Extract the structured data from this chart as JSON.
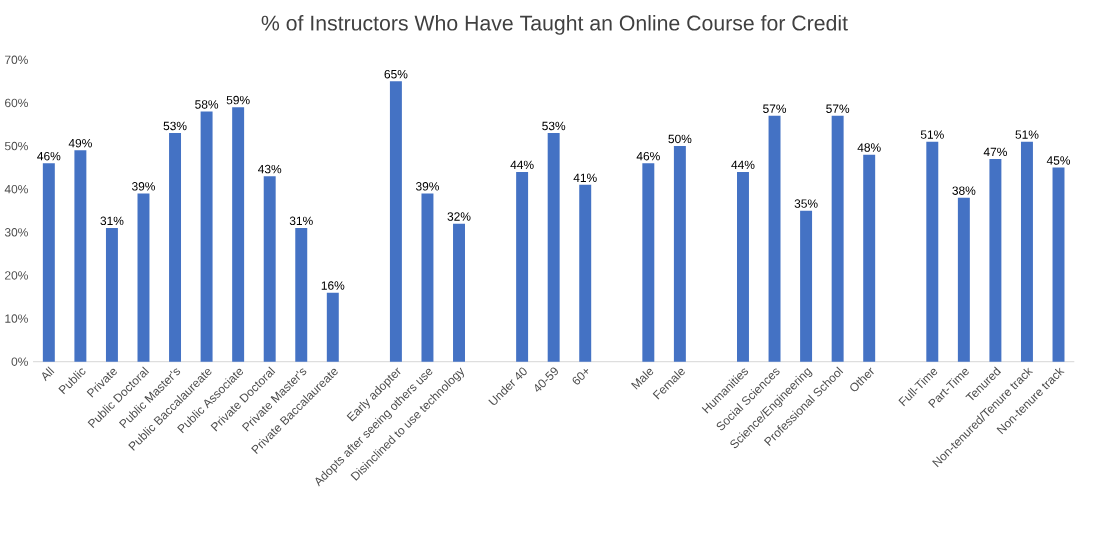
{
  "chart_data": {
    "type": "bar",
    "title": "% of Instructors Who Have Taught an Online Course for Credit",
    "categories": [
      "All",
      "Public",
      "Private",
      "Public Doctoral",
      "Public Master's",
      "Public Baccalaureate",
      "Public Associate",
      "Private Doctoral",
      "Private Master's",
      "Private Baccalaureate",
      null,
      "Early adopter",
      "Adopts after seeing others use",
      "Disinclined to use technology",
      null,
      "Under 40",
      "40-59",
      "60+",
      null,
      "Male",
      "Female",
      null,
      "Humanities",
      "Social Sciences",
      "Science/Engineering",
      "Professional School",
      "Other",
      null,
      "Full-Time",
      "Part-Time",
      "Tenured",
      "Non-tenured/Tenure track",
      "Non-tenure track"
    ],
    "values": [
      46,
      49,
      31,
      39,
      53,
      58,
      59,
      43,
      31,
      16,
      null,
      65,
      39,
      32,
      null,
      44,
      53,
      41,
      null,
      46,
      50,
      null,
      44,
      57,
      35,
      57,
      48,
      null,
      51,
      38,
      47,
      51,
      45
    ],
    "value_labels": [
      "46%",
      "49%",
      "31%",
      "39%",
      "53%",
      "58%",
      "59%",
      "43%",
      "31%",
      "16%",
      null,
      "65%",
      "39%",
      "32%",
      null,
      "44%",
      "53%",
      "41%",
      null,
      "46%",
      "50%",
      null,
      "44%",
      "57%",
      "35%",
      "57%",
      "48%",
      null,
      "51%",
      "38%",
      "47%",
      "51%",
      "45%"
    ],
    "color": "#4472c4",
    "ylim": [
      0,
      70
    ],
    "yticks": [
      {
        "value": 0,
        "label": "0%"
      },
      {
        "value": 10,
        "label": "10%"
      },
      {
        "value": 20,
        "label": "20%"
      },
      {
        "value": 30,
        "label": "30%"
      },
      {
        "value": 40,
        "label": "40%"
      },
      {
        "value": 50,
        "label": "50%"
      },
      {
        "value": 60,
        "label": "60%"
      },
      {
        "value": 70,
        "label": "70%"
      }
    ]
  }
}
